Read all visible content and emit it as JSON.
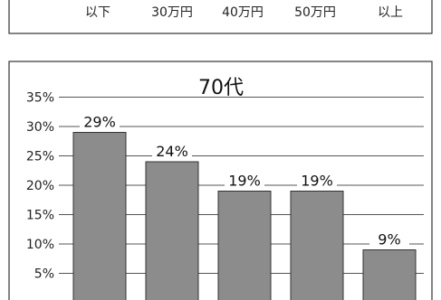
{
  "top_strip": {
    "labels": [
      "以下",
      "30万円",
      "40万円",
      "50万円",
      "以上"
    ]
  },
  "chart_data": {
    "type": "bar",
    "title": "70代",
    "categories": [
      "",
      "",
      "",
      "",
      ""
    ],
    "values": [
      29,
      24,
      19,
      19,
      9
    ],
    "data_labels": [
      "29%",
      "24%",
      "19%",
      "19%",
      "9%"
    ],
    "y_tick_values": [
      5,
      10,
      15,
      20,
      25,
      30,
      35
    ],
    "y_tick_labels": [
      "5%",
      "10%",
      "15%",
      "20%",
      "25%",
      "30%",
      "35%"
    ],
    "ylim": [
      0,
      35
    ],
    "grid": true,
    "bar_color": "#8c8c8c",
    "grid_color": "#555555"
  }
}
